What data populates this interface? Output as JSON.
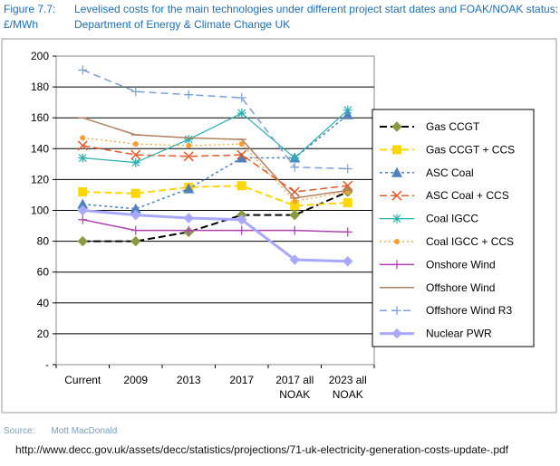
{
  "header": {
    "figure_number": "Figure 7.7:",
    "unit": "£/MWh",
    "title": "Levelised costs for the main technologies under different project start dates and FOAK/NOAK status:",
    "department": "Department of Energy & Climate Change UK"
  },
  "footer": {
    "source_label": "Source:",
    "source_name": "Mott MacDonald",
    "url": "http://www.decc.gov.uk/assets/decc/statistics/projections/71-uk-electricity-generation-costs-update-.pdf"
  },
  "chart_data": {
    "type": "line",
    "title": "",
    "xlabel": "",
    "ylabel": "",
    "categories": [
      [
        "Current"
      ],
      [
        "2009"
      ],
      [
        "2013"
      ],
      [
        "2017"
      ],
      [
        "2017 all",
        "NOAK"
      ],
      [
        "2023 all",
        "NOAK"
      ]
    ],
    "ylim": [
      0,
      200
    ],
    "yticks": [
      0,
      20,
      40,
      60,
      80,
      100,
      120,
      140,
      160,
      180,
      200
    ],
    "ytick_labels": [
      "-",
      "20",
      "40",
      "60",
      "80",
      "100",
      "120",
      "140",
      "160",
      "180",
      "200"
    ],
    "grid": true,
    "legend_position": "right",
    "series": [
      {
        "name": "Gas CCGT",
        "values": [
          80,
          80,
          86,
          97,
          97,
          112
        ],
        "color": "#000000",
        "dash": "8,4",
        "marker": "diamond",
        "marker_color": "#8a9a40",
        "width": 2
      },
      {
        "name": "Gas CCGT + CCS",
        "values": [
          112,
          111,
          115,
          116,
          103,
          105
        ],
        "color": "#ffd700",
        "dash": "8,4",
        "marker": "square",
        "marker_color": "#ffd700",
        "width": 2
      },
      {
        "name": "ASC Coal",
        "values": [
          104,
          101,
          114,
          134,
          134,
          162
        ],
        "color": "#4f81bd",
        "dash": "3,3",
        "marker": "triangle",
        "marker_color": "#4f81bd",
        "width": 1.5
      },
      {
        "name": "ASC Coal + CCS",
        "values": [
          142,
          136,
          135,
          136,
          112,
          116
        ],
        "color": "#e05a2b",
        "dash": "8,4",
        "marker": "x",
        "marker_color": "#e05a2b",
        "width": 1.5
      },
      {
        "name": "Coal IGCC",
        "values": [
          134,
          131,
          146,
          163,
          134,
          165
        ],
        "color": "#2bb0b0",
        "dash": "",
        "marker": "star",
        "marker_color": "#2bb0b0",
        "width": 1.2
      },
      {
        "name": "Coal  IGCC + CCS",
        "values": [
          147,
          143,
          142,
          143,
          106,
          112
        ],
        "color": "#f5a030",
        "dash": "2,3",
        "marker": "circle",
        "marker_color": "#f5a030",
        "width": 1.2
      },
      {
        "name": "Onshore Wind",
        "values": [
          94,
          87,
          87,
          87,
          87,
          86
        ],
        "color": "#b040b0",
        "dash": "",
        "marker": "plus",
        "marker_color": "#b040b0",
        "width": 1.5
      },
      {
        "name": "Offshore Wind",
        "values": [
          160,
          149,
          147,
          146,
          108,
          113
        ],
        "color": "#b08060",
        "dash": "",
        "marker": "dash",
        "marker_color": "#b08060",
        "width": 1.5
      },
      {
        "name": "Offshore Wind R3",
        "values": [
          191,
          177,
          175,
          173,
          128,
          127
        ],
        "color": "#7b9fd4",
        "dash": "8,5",
        "marker": "plus",
        "marker_color": "#7b9fd4",
        "width": 1.5
      },
      {
        "name": "Nuclear PWR",
        "values": [
          100,
          97,
          95,
          94,
          68,
          67
        ],
        "color": "#a9a8ff",
        "dash": "",
        "marker": "diamond",
        "marker_color": "#a9a8ff",
        "width": 3
      }
    ]
  }
}
